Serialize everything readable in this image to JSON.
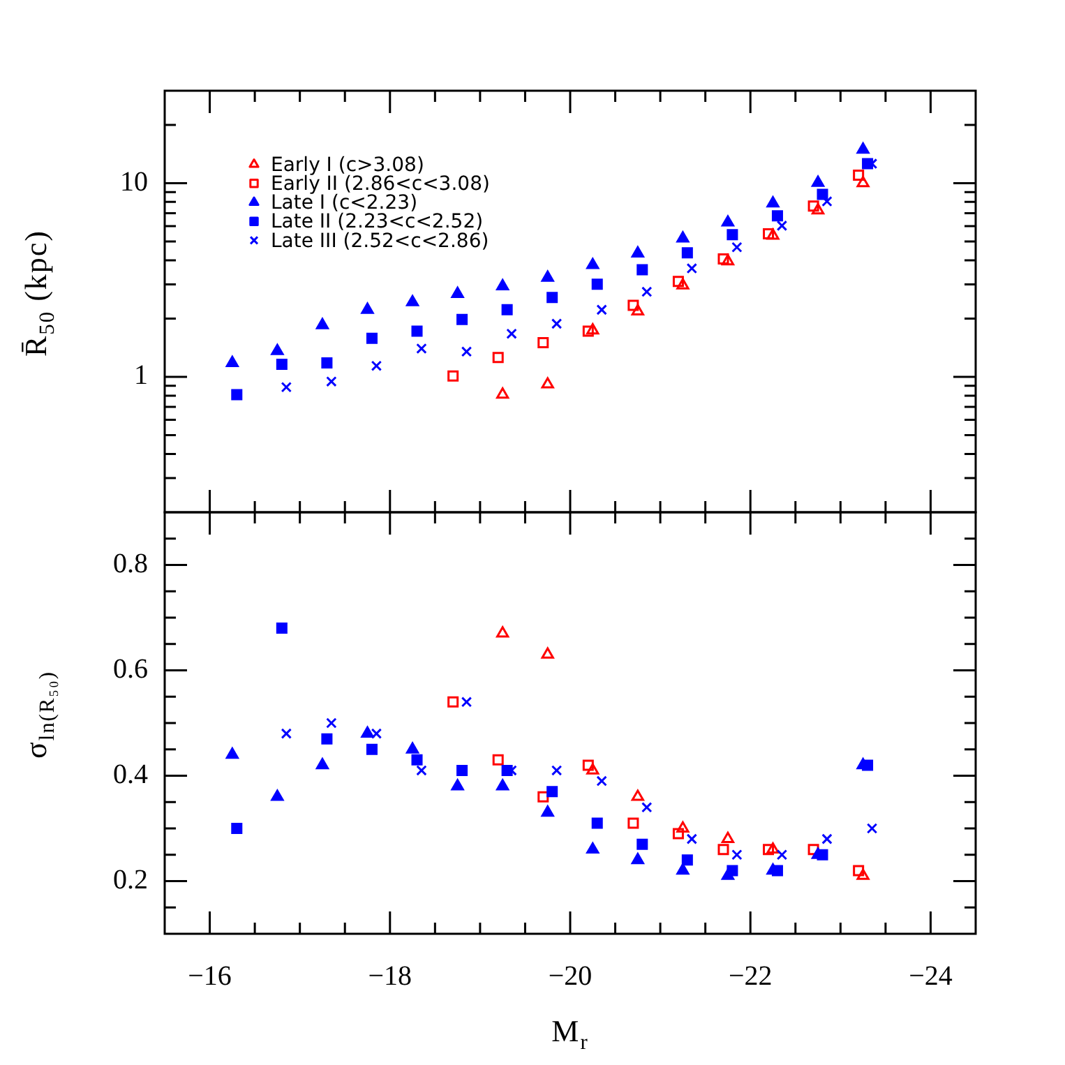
{
  "chart_data": [
    {
      "type": "scatter",
      "ylabel": "R̄$_{50}$ (kpc)",
      "xlim": [
        -15.5,
        -24.5
      ],
      "xticks": [
        -16,
        {
          "value": -16.5,
          "label": null
        },
        {
          "value": -17,
          "label": null
        },
        {
          "value": -17.5,
          "label": null
        },
        -18,
        {
          "value": -18.5,
          "label": null
        },
        {
          "value": -19,
          "label": null
        },
        {
          "value": -19.5,
          "label": null
        },
        -20,
        {
          "value": -20.5,
          "label": null
        },
        {
          "value": -21,
          "label": null
        },
        {
          "value": -21.5,
          "label": null
        },
        -22,
        {
          "value": -22.5,
          "label": null
        },
        {
          "value": -23,
          "label": null
        },
        {
          "value": -23.5,
          "label": null
        },
        -24
      ],
      "ylim": [
        0.2,
        30
      ],
      "yticks": [
        {
          "value": 0.3,
          "label": null
        },
        {
          "value": 0.4,
          "label": null
        },
        {
          "value": 0.5,
          "label": null
        },
        {
          "value": 0.6,
          "label": null
        },
        {
          "value": 0.7,
          "label": null
        },
        {
          "value": 0.8,
          "label": null
        },
        {
          "value": 0.9,
          "label": null
        },
        1,
        {
          "value": 2,
          "label": null
        },
        {
          "value": 3,
          "label": null
        },
        {
          "value": 4,
          "label": null
        },
        {
          "value": 5,
          "label": null
        },
        {
          "value": 6,
          "label": null
        },
        {
          "value": 7,
          "label": null
        },
        {
          "value": 8,
          "label": null
        },
        {
          "value": 9,
          "label": null
        },
        10,
        {
          "value": 20,
          "label": null
        }
      ],
      "log": "y",
      "legend": "top left",
      "tick_labels": "y",
      "series": [
        {
          "name": "Early I (c>3.08)",
          "color": "#ff0000",
          "marker": "triangle",
          "x": [
            -19.25,
            -19.75,
            -20.25,
            -20.75,
            -21.25,
            -21.75,
            -22.25,
            -22.75,
            -23.25
          ],
          "values": [
            0.81,
            0.915,
            1.74,
            2.18,
            2.97,
            3.95,
            5.36,
            7.24,
            10.0
          ]
        },
        {
          "name": "Early II (2.86<c<3.08)",
          "color": "#ff0000",
          "marker": "square",
          "x": [
            -18.7,
            -19.2,
            -19.7,
            -20.2,
            -20.7,
            -21.2,
            -21.7,
            -22.2,
            -22.7,
            -23.2
          ],
          "values": [
            1.01,
            1.26,
            1.5,
            1.72,
            2.34,
            3.11,
            4.06,
            5.48,
            7.61,
            11.0
          ]
        },
        {
          "name": "Late I (c<2.23)",
          "color": "#0000ff",
          "marker": "triangle",
          "x": [
            -16.25,
            -16.75,
            -17.25,
            -17.75,
            -18.25,
            -18.75,
            -19.25,
            -19.75,
            -20.25,
            -20.75,
            -21.25,
            -21.75,
            -22.25,
            -22.75,
            -23.25
          ],
          "values": [
            1.18,
            1.36,
            1.85,
            2.22,
            2.43,
            2.68,
            2.94,
            3.25,
            3.78,
            4.34,
            5.19,
            6.27,
            7.87,
            10.05,
            14.9
          ]
        },
        {
          "name": "Late II (2.23<c<2.52)",
          "color": "#0000ff",
          "marker": "square",
          "x": [
            -16.3,
            -16.8,
            -17.3,
            -17.8,
            -18.3,
            -18.8,
            -19.3,
            -19.8,
            -20.3,
            -20.8,
            -21.3,
            -21.8,
            -22.3,
            -22.8,
            -23.3
          ],
          "values": [
            0.81,
            1.16,
            1.18,
            1.58,
            1.72,
            1.98,
            2.22,
            2.57,
            3.01,
            3.57,
            4.37,
            5.42,
            6.78,
            8.75,
            12.6
          ]
        },
        {
          "name": "Late III (2.52<c<2.86)",
          "color": "#0000ff",
          "marker": "cross",
          "x": [
            -16.85,
            -17.35,
            -17.85,
            -18.35,
            -18.85,
            -19.35,
            -19.85,
            -20.35,
            -20.85,
            -21.35,
            -21.85,
            -22.35,
            -22.85,
            -23.35
          ],
          "values": [
            0.885,
            0.946,
            1.14,
            1.4,
            1.35,
            1.67,
            1.88,
            2.22,
            2.75,
            3.63,
            4.67,
            6.03,
            8.05,
            12.6
          ]
        }
      ]
    },
    {
      "type": "scatter",
      "xlabel": "M$_{r}$",
      "ylabel": "σ$_{ln(R₅₀)}$",
      "xlim": [
        -15.5,
        -24.5
      ],
      "xticks": [
        {
          "value": -16,
          "label": "−16"
        },
        {
          "value": -16.5,
          "label": null
        },
        {
          "value": -17,
          "label": null
        },
        {
          "value": -17.5,
          "label": null
        },
        {
          "value": -18,
          "label": "−18"
        },
        {
          "value": -18.5,
          "label": null
        },
        {
          "value": -19,
          "label": null
        },
        {
          "value": -19.5,
          "label": null
        },
        {
          "value": -20,
          "label": "−20"
        },
        {
          "value": -20.5,
          "label": null
        },
        {
          "value": -21,
          "label": null
        },
        {
          "value": -21.5,
          "label": null
        },
        {
          "value": -22,
          "label": "−22"
        },
        {
          "value": -22.5,
          "label": null
        },
        {
          "value": -23,
          "label": null
        },
        {
          "value": -23.5,
          "label": null
        },
        {
          "value": -24,
          "label": "−24"
        }
      ],
      "ylim": [
        0.1,
        0.9
      ],
      "yticks": [
        {
          "value": 0.15,
          "label": null
        },
        0.2,
        {
          "value": 0.25,
          "label": null
        },
        {
          "value": 0.3,
          "label": null
        },
        {
          "value": 0.35,
          "label": null
        },
        0.4,
        {
          "value": 0.45,
          "label": null
        },
        {
          "value": 0.5,
          "label": null
        },
        {
          "value": 0.55,
          "label": null
        },
        0.6,
        {
          "value": 0.65,
          "label": null
        },
        {
          "value": 0.7,
          "label": null
        },
        {
          "value": 0.75,
          "label": null
        },
        0.8,
        {
          "value": 0.85,
          "label": null
        }
      ],
      "series": [
        {
          "color": "#ff0000",
          "marker": "triangle",
          "x": [
            -19.25,
            -19.75,
            -20.25,
            -20.75,
            -21.25,
            -21.75,
            -22.25,
            -22.75,
            -23.25
          ],
          "values": [
            0.67,
            0.63,
            0.41,
            0.36,
            0.3,
            0.28,
            0.26,
            null,
            0.21
          ]
        },
        {
          "color": "#ff0000",
          "marker": "square",
          "x": [
            -18.7,
            -19.2,
            -19.7,
            -20.2,
            -20.7,
            -21.2,
            -21.7,
            -22.2,
            -22.7,
            -23.2
          ],
          "values": [
            0.54,
            0.43,
            0.36,
            0.42,
            0.31,
            0.29,
            0.26,
            0.26,
            0.26,
            0.22
          ]
        },
        {
          "color": "#0000ff",
          "marker": "triangle",
          "x": [
            -16.25,
            -16.75,
            -17.25,
            -17.75,
            -18.25,
            -18.75,
            -19.25,
            -19.75,
            -20.25,
            -20.75,
            -21.25,
            -21.75,
            -22.25,
            -22.75,
            -23.25
          ],
          "values": [
            0.44,
            0.36,
            0.42,
            0.48,
            0.45,
            0.38,
            0.38,
            0.33,
            0.26,
            0.24,
            0.22,
            0.21,
            0.22,
            0.25,
            0.42
          ]
        },
        {
          "color": "#0000ff",
          "marker": "square",
          "x": [
            -16.3,
            -16.8,
            -17.3,
            -17.8,
            -18.3,
            -18.8,
            -19.3,
            -19.8,
            -20.3,
            -20.8,
            -21.3,
            -21.8,
            -22.3,
            -22.8,
            -23.3
          ],
          "values": [
            0.3,
            0.68,
            0.47,
            0.45,
            0.43,
            0.41,
            0.41,
            0.37,
            0.31,
            0.27,
            0.24,
            0.22,
            0.22,
            0.25,
            0.42
          ]
        },
        {
          "color": "#0000ff",
          "marker": "cross",
          "x": [
            -16.85,
            -17.35,
            -17.85,
            -18.35,
            -18.85,
            -19.35,
            -19.85,
            -20.35,
            -20.85,
            -21.35,
            -21.85,
            -22.35,
            -22.85,
            -23.35
          ],
          "values": [
            0.48,
            0.5,
            0.48,
            0.41,
            0.54,
            0.41,
            0.41,
            0.39,
            0.34,
            0.28,
            0.25,
            0.25,
            0.28,
            0.3
          ]
        }
      ]
    }
  ]
}
